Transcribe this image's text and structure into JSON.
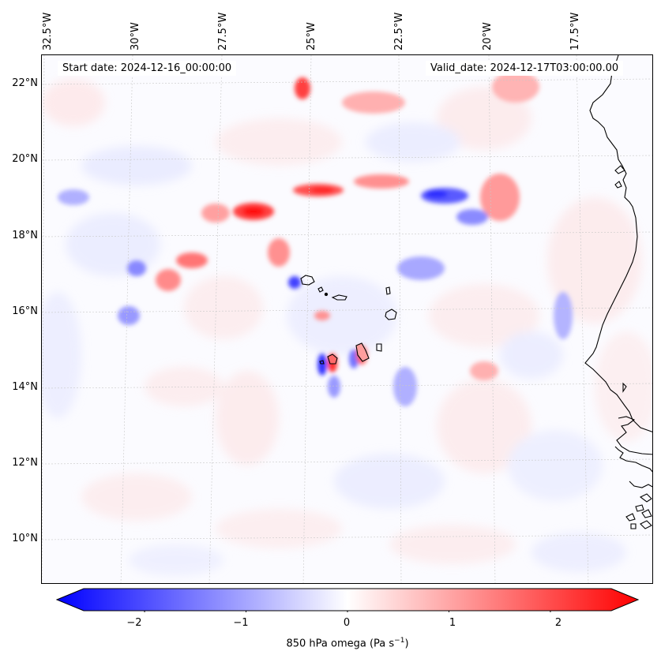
{
  "map": {
    "start_date": "Start date: 2024-12-16_00:00:00",
    "valid_date": "Valid_date: 2024-12-17T03:00:00.00",
    "lon_labels": [
      "32.5°W",
      "30°W",
      "27.5°W",
      "25°W",
      "22.5°W",
      "20°W",
      "17.5°W"
    ],
    "lat_labels": [
      "22°N",
      "20°N",
      "18°N",
      "16°N",
      "14°N",
      "12°N",
      "10°N"
    ]
  },
  "colorbar": {
    "ticks": [
      "−2",
      "−1",
      "0",
      "1",
      "2"
    ],
    "tick_values": [
      -2,
      -1,
      0,
      1,
      2
    ],
    "range": [
      -2.6,
      2.6
    ],
    "label_text": "850 hPa omega (Pa s",
    "label_sup": "−1",
    "label_close": ")",
    "colors": {
      "negative": "#0000ff",
      "neutral": "#ffffff",
      "positive": "#ff0000"
    }
  }
}
